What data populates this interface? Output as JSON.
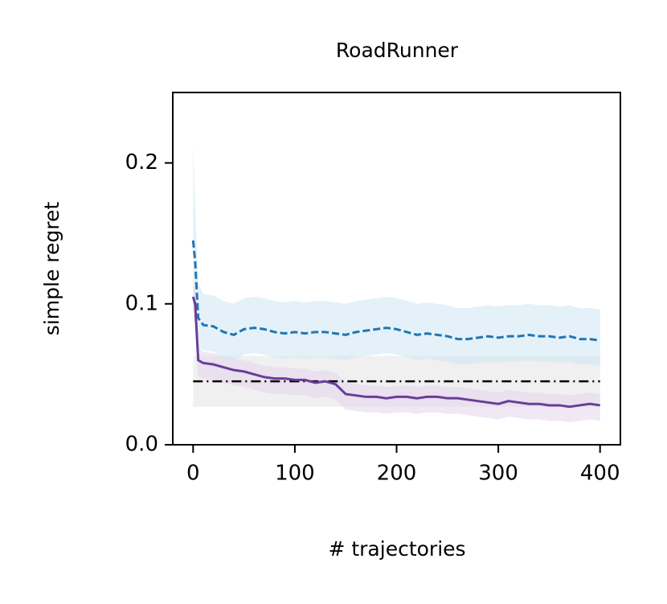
{
  "chart_data": {
    "type": "line",
    "title": "RoadRunner",
    "xlabel": "# trajectories",
    "ylabel": "simple regret",
    "xlim": [
      -20,
      420
    ],
    "ylim": [
      0,
      0.25
    ],
    "xticks": [
      0,
      100,
      200,
      300,
      400
    ],
    "yticks": [
      {
        "value": 0,
        "label": "0.0"
      },
      0.1,
      0.2
    ],
    "x": [
      0,
      2,
      5,
      10,
      20,
      30,
      40,
      50,
      60,
      70,
      80,
      90,
      100,
      110,
      120,
      130,
      140,
      150,
      160,
      170,
      180,
      190,
      200,
      210,
      220,
      230,
      240,
      250,
      260,
      270,
      280,
      290,
      300,
      310,
      320,
      330,
      340,
      350,
      360,
      370,
      380,
      390,
      400
    ],
    "series": [
      {
        "color": "#1f77b4",
        "band_color": "#cfe5f3",
        "dash": "dashed",
        "values": [
          0.145,
          0.13,
          0.09,
          0.085,
          0.084,
          0.08,
          0.078,
          0.082,
          0.083,
          0.082,
          0.08,
          0.079,
          0.08,
          0.079,
          0.08,
          0.08,
          0.079,
          0.078,
          0.08,
          0.081,
          0.082,
          0.083,
          0.082,
          0.08,
          0.078,
          0.079,
          0.078,
          0.077,
          0.075,
          0.075,
          0.076,
          0.077,
          0.076,
          0.077,
          0.077,
          0.078,
          0.077,
          0.077,
          0.076,
          0.077,
          0.075,
          0.075,
          0.074
        ],
        "band_upper": [
          0.215,
          0.17,
          0.115,
          0.107,
          0.106,
          0.102,
          0.1,
          0.104,
          0.105,
          0.104,
          0.102,
          0.101,
          0.102,
          0.101,
          0.102,
          0.102,
          0.101,
          0.1,
          0.102,
          0.103,
          0.104,
          0.105,
          0.104,
          0.102,
          0.1,
          0.101,
          0.1,
          0.099,
          0.097,
          0.097,
          0.098,
          0.099,
          0.098,
          0.099,
          0.099,
          0.1,
          0.099,
          0.099,
          0.098,
          0.099,
          0.097,
          0.097,
          0.096
        ],
        "band_lower": [
          0.1,
          0.09,
          0.07,
          0.067,
          0.066,
          0.062,
          0.06,
          0.064,
          0.065,
          0.064,
          0.062,
          0.061,
          0.062,
          0.061,
          0.062,
          0.062,
          0.061,
          0.06,
          0.062,
          0.063,
          0.064,
          0.065,
          0.064,
          0.062,
          0.06,
          0.061,
          0.06,
          0.059,
          0.057,
          0.057,
          0.058,
          0.059,
          0.058,
          0.059,
          0.059,
          0.06,
          0.059,
          0.059,
          0.058,
          0.059,
          0.057,
          0.057,
          0.056
        ]
      },
      {
        "color": "#6a3d9a",
        "band_color": "#e3d6ec",
        "dash": "solid",
        "values": [
          0.105,
          0.1,
          0.06,
          0.058,
          0.057,
          0.055,
          0.053,
          0.052,
          0.05,
          0.048,
          0.047,
          0.047,
          0.046,
          0.046,
          0.044,
          0.045,
          0.043,
          0.036,
          0.035,
          0.034,
          0.034,
          0.033,
          0.034,
          0.034,
          0.033,
          0.034,
          0.034,
          0.033,
          0.033,
          0.032,
          0.031,
          0.03,
          0.029,
          0.031,
          0.03,
          0.029,
          0.029,
          0.028,
          0.028,
          0.027,
          0.028,
          0.029,
          0.028
        ],
        "band_upper": [
          0.115,
          0.11,
          0.07,
          0.066,
          0.065,
          0.063,
          0.061,
          0.06,
          0.058,
          0.056,
          0.055,
          0.055,
          0.054,
          0.054,
          0.052,
          0.053,
          0.051,
          0.044,
          0.043,
          0.042,
          0.042,
          0.041,
          0.042,
          0.042,
          0.041,
          0.042,
          0.042,
          0.041,
          0.041,
          0.04,
          0.039,
          0.038,
          0.037,
          0.039,
          0.038,
          0.037,
          0.037,
          0.036,
          0.036,
          0.035,
          0.036,
          0.037,
          0.036
        ],
        "band_lower": [
          0.09,
          0.085,
          0.048,
          0.047,
          0.046,
          0.044,
          0.042,
          0.041,
          0.039,
          0.037,
          0.036,
          0.036,
          0.035,
          0.035,
          0.033,
          0.034,
          0.032,
          0.025,
          0.024,
          0.023,
          0.023,
          0.022,
          0.023,
          0.023,
          0.022,
          0.023,
          0.023,
          0.022,
          0.022,
          0.021,
          0.02,
          0.019,
          0.018,
          0.02,
          0.019,
          0.018,
          0.018,
          0.017,
          0.017,
          0.016,
          0.017,
          0.018,
          0.017
        ]
      }
    ],
    "hline": {
      "value": 0.045,
      "lower": 0.027,
      "upper": 0.063,
      "color": "#000000",
      "band_color": "#e6e6e6"
    }
  }
}
